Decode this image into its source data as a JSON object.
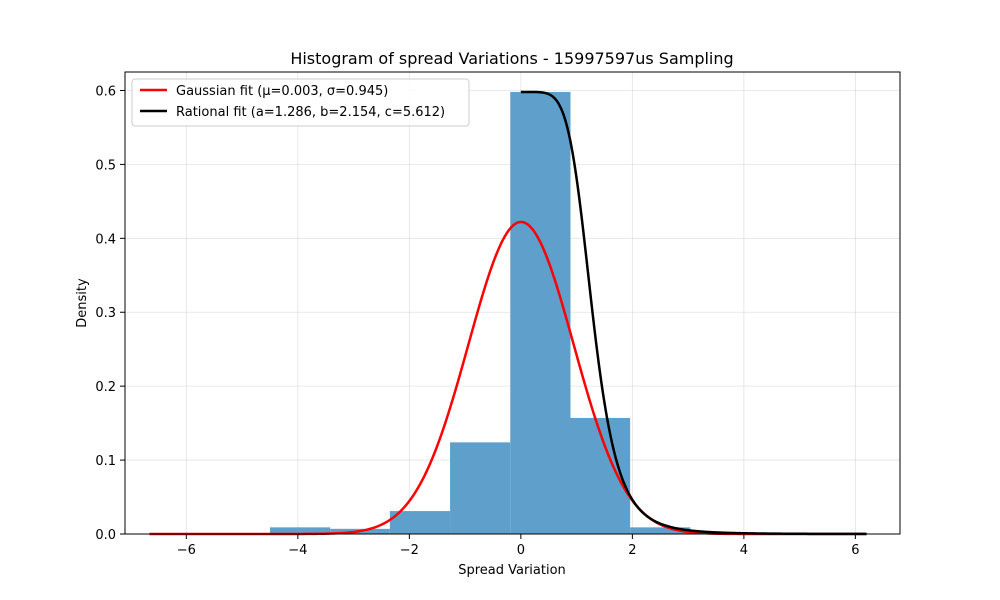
{
  "chart_data": {
    "type": "histogram",
    "title": "Histogram of spread Variations - 15997597us Sampling",
    "xlabel": "Spread Variation",
    "ylabel": "Density",
    "xlim": [
      -7.1,
      6.8
    ],
    "ylim": [
      0,
      0.625
    ],
    "xticks": [
      -6,
      -4,
      -2,
      0,
      2,
      4,
      6
    ],
    "xtick_labels": [
      "−6",
      "−4",
      "−2",
      "0",
      "2",
      "4",
      "6"
    ],
    "yticks": [
      0.0,
      0.1,
      0.2,
      0.3,
      0.4,
      0.5,
      0.6
    ],
    "ytick_labels": [
      "0.0",
      "0.1",
      "0.2",
      "0.3",
      "0.4",
      "0.5",
      "0.6"
    ],
    "grid": true,
    "legend_position": "top-left",
    "bins": {
      "edges": [
        -6.66,
        -5.58,
        -4.5,
        -3.42,
        -2.35,
        -1.27,
        -0.19,
        0.89,
        1.96,
        3.04,
        4.12,
        5.2,
        6.28
      ],
      "values": [
        0.0005,
        0.0005,
        0.009,
        0.007,
        0.031,
        0.124,
        0.598,
        0.157,
        0.009,
        0.0015,
        0.0005,
        0.0003
      ],
      "color": "#5f9fcb"
    },
    "series": [
      {
        "name": "Gaussian fit (μ=0.003, σ=0.945)",
        "kind": "gaussian",
        "mu": 0.003,
        "sigma": 0.945,
        "x_range": [
          -6.66,
          6.2
        ],
        "color": "#ff0000"
      },
      {
        "name": "Rational fit (a=1.286, b=2.154, c=5.612)",
        "kind": "rational",
        "a": 1.286,
        "b": 2.154,
        "c": 5.612,
        "peak": 0.598,
        "x_range": [
          0,
          6.2
        ],
        "color": "#000000"
      }
    ]
  }
}
